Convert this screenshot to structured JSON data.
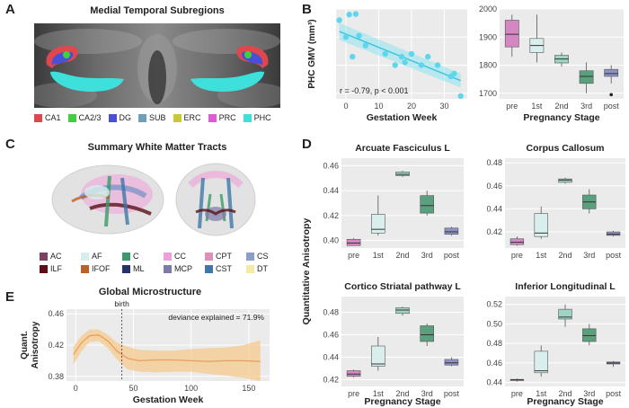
{
  "panels": {
    "A": "A",
    "B": "B",
    "C": "C",
    "D": "D",
    "E": "E"
  },
  "panelA": {
    "title": "Medial Temporal Subregions",
    "legend": [
      {
        "label": "CA1",
        "color": "#e0474c"
      },
      {
        "label": "CA2/3",
        "color": "#3fd03f"
      },
      {
        "label": "DG",
        "color": "#4a4fd8"
      },
      {
        "label": "SUB",
        "color": "#6f9fb8"
      },
      {
        "label": "ERC",
        "color": "#c9c936"
      },
      {
        "label": "PRC",
        "color": "#e05ad8"
      },
      {
        "label": "PHC",
        "color": "#3ee0dc"
      }
    ]
  },
  "panelC": {
    "title": "Summary White Matter Tracts",
    "legend": [
      {
        "label": "AC",
        "color": "#7b4262"
      },
      {
        "label": "AF",
        "color": "#d6efee"
      },
      {
        "label": "C",
        "color": "#3a9a6c"
      },
      {
        "label": "CC",
        "color": "#f0a0d8"
      },
      {
        "label": "CPT",
        "color": "#e08fb8"
      },
      {
        "label": "CS",
        "color": "#8ba0c8"
      },
      {
        "label": "ILF",
        "color": "#5a1016"
      },
      {
        "label": "IFOF",
        "color": "#b8622a"
      },
      {
        "label": "ML",
        "color": "#28326a"
      },
      {
        "label": "MCP",
        "color": "#7d7aa8"
      },
      {
        "label": "CST",
        "color": "#3f78a8"
      },
      {
        "label": "DT",
        "color": "#f4eaa8"
      }
    ]
  },
  "chart_data": [
    {
      "id": "B-scatter",
      "type": "scatter",
      "xlabel": "Gestation Week",
      "ylabel": "PHC GMV (mm³)",
      "xticks": [
        0,
        10,
        20,
        30
      ],
      "xlim": [
        -3,
        37
      ],
      "ylim": [
        1680,
        2000
      ],
      "points": [
        {
          "x": -2,
          "y": 1960
        },
        {
          "x": 1,
          "y": 1980
        },
        {
          "x": 3,
          "y": 1982
        },
        {
          "x": 0,
          "y": 1900
        },
        {
          "x": 4,
          "y": 1905
        },
        {
          "x": 6,
          "y": 1870
        },
        {
          "x": 2,
          "y": 1830
        },
        {
          "x": 12,
          "y": 1840
        },
        {
          "x": 15,
          "y": 1800
        },
        {
          "x": 17,
          "y": 1830
        },
        {
          "x": 18,
          "y": 1810
        },
        {
          "x": 20,
          "y": 1840
        },
        {
          "x": 23,
          "y": 1800
        },
        {
          "x": 25,
          "y": 1830
        },
        {
          "x": 28,
          "y": 1800
        },
        {
          "x": 32,
          "y": 1760
        },
        {
          "x": 33,
          "y": 1770
        },
        {
          "x": 35,
          "y": 1690
        }
      ],
      "fit": {
        "x0": -2,
        "y0": 1920,
        "x1": 35,
        "y1": 1745
      },
      "annotation": "r = -0.79, p < 0.001"
    },
    {
      "id": "B-box",
      "type": "box",
      "xlabel": "Pregnancy Stage",
      "categories": [
        "pre",
        "1st",
        "2nd",
        "3rd",
        "post"
      ],
      "yticks": [
        1700,
        1800,
        1900,
        2000
      ],
      "ylim": [
        1680,
        2000
      ],
      "boxes": [
        {
          "min": 1830,
          "q1": 1865,
          "median": 1910,
          "q3": 1960,
          "max": 1980,
          "color": "#d487c0"
        },
        {
          "min": 1810,
          "q1": 1845,
          "median": 1870,
          "q3": 1895,
          "max": 1980,
          "color": "#d8efee"
        },
        {
          "min": 1795,
          "q1": 1808,
          "median": 1822,
          "q3": 1835,
          "max": 1845,
          "color": "#9fd4c4"
        },
        {
          "min": 1700,
          "q1": 1735,
          "median": 1760,
          "q3": 1780,
          "max": 1810,
          "color": "#5aa07e"
        },
        {
          "min": 1735,
          "q1": 1760,
          "median": 1770,
          "q3": 1785,
          "max": 1800,
          "color": "#8d92c4",
          "outliers": [
            1695
          ]
        }
      ]
    },
    {
      "id": "D-shared",
      "ylabel": "Quantitative Anisotropy",
      "xlabel": "Pregnancy Stage",
      "categories": [
        "pre",
        "1st",
        "2nd",
        "3rd",
        "post"
      ]
    },
    {
      "id": "D-af",
      "type": "box",
      "title": "Arcuate Fasciculus L",
      "yticks": [
        0.4,
        0.42,
        0.44,
        0.46
      ],
      "ylim": [
        0.394,
        0.466
      ],
      "boxes": [
        {
          "min": 0.396,
          "q1": 0.396,
          "median": 0.398,
          "q3": 0.401,
          "max": 0.402,
          "color": "#d487c0"
        },
        {
          "min": 0.404,
          "q1": 0.406,
          "median": 0.409,
          "q3": 0.421,
          "max": 0.436,
          "color": "#d8efee"
        },
        {
          "min": 0.451,
          "q1": 0.452,
          "median": 0.453,
          "q3": 0.455,
          "max": 0.456,
          "color": "#9fd4c4"
        },
        {
          "min": 0.42,
          "q1": 0.422,
          "median": 0.428,
          "q3": 0.436,
          "max": 0.44,
          "color": "#5aa07e"
        },
        {
          "min": 0.404,
          "q1": 0.405,
          "median": 0.407,
          "q3": 0.41,
          "max": 0.411,
          "color": "#8d92c4"
        }
      ]
    },
    {
      "id": "D-cc",
      "type": "box",
      "title": "Corpus Callosum",
      "yticks": [
        0.42,
        0.44,
        0.46,
        0.48
      ],
      "ylim": [
        0.406,
        0.484
      ],
      "boxes": [
        {
          "min": 0.408,
          "q1": 0.409,
          "median": 0.411,
          "q3": 0.414,
          "max": 0.416,
          "color": "#d487c0"
        },
        {
          "min": 0.414,
          "q1": 0.416,
          "median": 0.419,
          "q3": 0.436,
          "max": 0.442,
          "color": "#d8efee"
        },
        {
          "min": 0.462,
          "q1": 0.463,
          "median": 0.465,
          "q3": 0.466,
          "max": 0.467,
          "color": "#9fd4c4"
        },
        {
          "min": 0.436,
          "q1": 0.44,
          "median": 0.446,
          "q3": 0.452,
          "max": 0.457,
          "color": "#5aa07e"
        },
        {
          "min": 0.416,
          "q1": 0.417,
          "median": 0.418,
          "q3": 0.42,
          "max": 0.421,
          "color": "#8d92c4"
        }
      ]
    },
    {
      "id": "D-csp",
      "type": "box",
      "title": "Cortico Striatal pathway L",
      "yticks": [
        0.42,
        0.44,
        0.46,
        0.48
      ],
      "ylim": [
        0.414,
        0.494
      ],
      "boxes": [
        {
          "min": 0.422,
          "q1": 0.423,
          "median": 0.425,
          "q3": 0.428,
          "max": 0.429,
          "color": "#d487c0"
        },
        {
          "min": 0.428,
          "q1": 0.432,
          "median": 0.434,
          "q3": 0.45,
          "max": 0.458,
          "color": "#d8efee"
        },
        {
          "min": 0.477,
          "q1": 0.479,
          "median": 0.482,
          "q3": 0.484,
          "max": 0.485,
          "color": "#9fd4c4"
        },
        {
          "min": 0.45,
          "q1": 0.454,
          "median": 0.46,
          "q3": 0.468,
          "max": 0.47,
          "color": "#5aa07e"
        },
        {
          "min": 0.432,
          "q1": 0.433,
          "median": 0.435,
          "q3": 0.438,
          "max": 0.44,
          "color": "#8d92c4"
        }
      ]
    },
    {
      "id": "D-ilf",
      "type": "box",
      "title": "Inferior Longitudinal L",
      "yticks": [
        0.44,
        0.46,
        0.48,
        0.5,
        0.52
      ],
      "ylim": [
        0.436,
        0.528
      ],
      "boxes": [
        {
          "min": 0.441,
          "q1": 0.442,
          "median": 0.443,
          "q3": 0.443,
          "max": 0.444,
          "color": "#d487c0"
        },
        {
          "min": 0.446,
          "q1": 0.45,
          "median": 0.452,
          "q3": 0.472,
          "max": 0.478,
          "color": "#d8efee"
        },
        {
          "min": 0.497,
          "q1": 0.505,
          "median": 0.507,
          "q3": 0.515,
          "max": 0.52,
          "color": "#9fd4c4"
        },
        {
          "min": 0.478,
          "q1": 0.482,
          "median": 0.488,
          "q3": 0.495,
          "max": 0.5,
          "color": "#5aa07e"
        },
        {
          "min": 0.456,
          "q1": 0.459,
          "median": 0.46,
          "q3": 0.461,
          "max": 0.462,
          "color": "#8d92c4"
        }
      ]
    },
    {
      "id": "E-line",
      "type": "line",
      "title": "Global Microstructure",
      "xlabel": "Gestation Week",
      "ylabel": "Quant. Anisotropy",
      "xticks": [
        0,
        50,
        100,
        150
      ],
      "yticks": [
        0.38,
        0.42,
        0.46
      ],
      "xlim": [
        -8,
        168
      ],
      "ylim": [
        0.374,
        0.466
      ],
      "vline_x": 40,
      "vline_label": "birth",
      "annotation": "deviance explained = 71.9%",
      "curve": [
        {
          "x": -2,
          "y": 0.408,
          "lo": 0.395,
          "hi": 0.418
        },
        {
          "x": 5,
          "y": 0.423,
          "lo": 0.412,
          "hi": 0.432
        },
        {
          "x": 12,
          "y": 0.432,
          "lo": 0.424,
          "hi": 0.44
        },
        {
          "x": 20,
          "y": 0.433,
          "lo": 0.425,
          "hi": 0.44
        },
        {
          "x": 28,
          "y": 0.425,
          "lo": 0.416,
          "hi": 0.433
        },
        {
          "x": 36,
          "y": 0.412,
          "lo": 0.401,
          "hi": 0.423
        },
        {
          "x": 45,
          "y": 0.403,
          "lo": 0.389,
          "hi": 0.418
        },
        {
          "x": 55,
          "y": 0.4,
          "lo": 0.386,
          "hi": 0.414
        },
        {
          "x": 70,
          "y": 0.401,
          "lo": 0.385,
          "hi": 0.413
        },
        {
          "x": 85,
          "y": 0.401,
          "lo": 0.386,
          "hi": 0.413
        },
        {
          "x": 100,
          "y": 0.4,
          "lo": 0.386,
          "hi": 0.415
        },
        {
          "x": 115,
          "y": 0.399,
          "lo": 0.383,
          "hi": 0.416
        },
        {
          "x": 130,
          "y": 0.4,
          "lo": 0.381,
          "hi": 0.417
        },
        {
          "x": 145,
          "y": 0.4,
          "lo": 0.378,
          "hi": 0.42
        },
        {
          "x": 160,
          "y": 0.399,
          "lo": 0.374,
          "hi": 0.426
        }
      ]
    }
  ]
}
